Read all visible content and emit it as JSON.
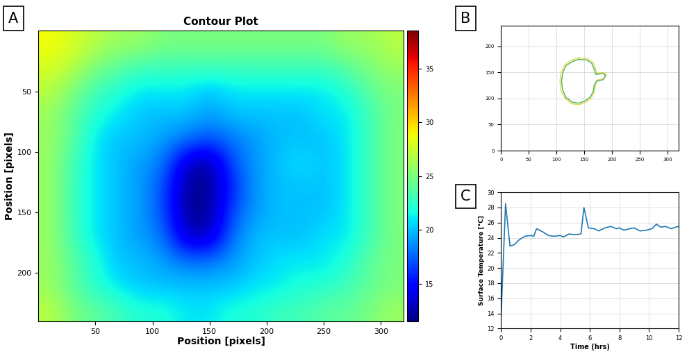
{
  "chart_data": [
    {
      "type": "heatmap",
      "panel": "A",
      "title": "Contour Plot",
      "x_label": "Position [pixels]",
      "y_label": "Position [pixels]",
      "xlim": [
        0,
        320
      ],
      "ylim": [
        240,
        0
      ],
      "xticks": [
        50,
        100,
        150,
        200,
        250,
        300
      ],
      "yticks": [
        50,
        100,
        150,
        200
      ],
      "color_range": [
        11.5,
        38.5
      ],
      "color_ticks": [
        15,
        20,
        25,
        30,
        35
      ],
      "cells": [
        [
          29,
          28,
          27,
          26,
          26,
          25,
          25,
          25,
          25,
          25,
          25,
          25,
          25,
          26,
          26,
          27
        ],
        [
          28,
          27,
          25,
          24,
          23,
          23,
          23,
          23,
          23,
          23,
          23,
          23,
          23,
          24,
          25,
          26
        ],
        [
          27,
          25,
          23,
          22,
          21,
          21,
          21,
          20,
          21,
          21,
          21,
          21,
          21,
          22,
          24,
          25
        ],
        [
          26,
          24,
          22,
          21,
          20,
          20,
          20,
          19,
          20,
          20,
          20,
          20,
          21,
          21,
          23,
          25
        ],
        [
          26,
          24,
          21,
          20,
          20,
          19,
          18,
          17,
          18,
          19,
          20,
          20,
          20,
          21,
          23,
          25
        ],
        [
          26,
          23,
          21,
          20,
          19,
          18,
          13,
          12,
          17,
          19,
          20,
          21,
          20,
          21,
          23,
          25
        ],
        [
          26,
          23,
          21,
          20,
          19,
          17,
          12,
          12,
          16,
          19,
          20,
          20,
          20,
          21,
          23,
          25
        ],
        [
          26,
          23,
          21,
          20,
          19,
          17,
          12,
          12,
          17,
          19,
          20,
          20,
          20,
          21,
          23,
          25
        ],
        [
          26,
          23,
          21,
          20,
          19,
          18,
          13,
          13,
          18,
          20,
          20,
          20,
          21,
          21,
          23,
          25
        ],
        [
          26,
          24,
          22,
          20,
          20,
          19,
          18,
          18,
          19,
          20,
          21,
          21,
          21,
          22,
          24,
          25
        ],
        [
          26,
          24,
          22,
          21,
          20,
          20,
          20,
          20,
          20,
          21,
          21,
          22,
          22,
          23,
          24,
          25
        ],
        [
          27,
          25,
          24,
          23,
          22,
          22,
          21,
          21,
          22,
          22,
          23,
          23,
          24,
          24,
          25,
          26
        ]
      ]
    },
    {
      "type": "line",
      "panel": "B",
      "xlim": [
        0,
        320
      ],
      "ylim": [
        0,
        240
      ],
      "xticks": [
        0,
        50,
        100,
        150,
        200,
        250,
        300
      ],
      "yticks": [
        0,
        50,
        100,
        150,
        200
      ],
      "grid": true,
      "series": [
        {
          "color": "#e6d84e",
          "x": [
            140,
            128,
            115,
            108,
            106,
            108,
            115,
            127,
            140,
            152,
            162,
            168,
            170,
            172,
            185,
            190,
            186,
            172,
            170,
            165,
            155,
            140
          ],
          "y": [
            178,
            174,
            165,
            150,
            133,
            115,
            100,
            90,
            88,
            92,
            100,
            112,
            125,
            135,
            138,
            145,
            150,
            148,
            158,
            170,
            177,
            178
          ]
        },
        {
          "color": "#4caf50",
          "x": [
            140,
            129,
            117,
            111,
            109,
            111,
            117,
            128,
            140,
            151,
            160,
            166,
            168,
            172,
            184,
            188,
            184,
            171,
            168,
            163,
            154,
            140
          ],
          "y": [
            175,
            171,
            163,
            149,
            133,
            116,
            102,
            93,
            91,
            95,
            102,
            113,
            126,
            133,
            136,
            144,
            148,
            146,
            156,
            168,
            174,
            175
          ]
        }
      ]
    },
    {
      "type": "line",
      "panel": "C",
      "x_label": "Time (hrs)",
      "y_label": "Surface Temperature [°C]",
      "xlim": [
        0,
        12
      ],
      "ylim": [
        12,
        30
      ],
      "xticks": [
        0,
        2,
        4,
        6,
        8,
        10,
        12
      ],
      "yticks": [
        12,
        14,
        16,
        18,
        20,
        22,
        24,
        26,
        28,
        30
      ],
      "grid": true,
      "color": "#1f77b4",
      "x": [
        0,
        0.3,
        0.6,
        0.9,
        1.2,
        1.6,
        2.0,
        2.2,
        2.4,
        2.8,
        3.2,
        3.6,
        4.0,
        4.2,
        4.6,
        5.0,
        5.4,
        5.6,
        5.9,
        6.3,
        6.6,
        7.0,
        7.4,
        7.8,
        8.0,
        8.3,
        8.7,
        9.0,
        9.4,
        9.8,
        10.2,
        10.5,
        10.8,
        11.1,
        11.5,
        11.8,
        12.0
      ],
      "values": [
        13.8,
        28.5,
        22.9,
        23.1,
        23.7,
        24.2,
        24.3,
        24.2,
        25.2,
        24.8,
        24.3,
        24.2,
        24.3,
        24.1,
        24.5,
        24.4,
        24.5,
        28.0,
        25.3,
        25.2,
        24.9,
        25.3,
        25.5,
        25.2,
        25.3,
        25.0,
        25.2,
        25.3,
        24.9,
        25.0,
        25.2,
        25.8,
        25.4,
        25.5,
        25.2,
        25.4,
        25.5
      ]
    }
  ]
}
